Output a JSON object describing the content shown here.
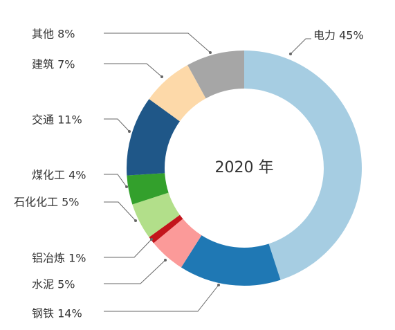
{
  "chart_data": {
    "type": "pie",
    "variant": "donut",
    "center_label": "2020 年",
    "slices": [
      {
        "name": "电力",
        "value": 45,
        "label": "电力 45%",
        "color": "#a6cde2"
      },
      {
        "name": "钢铁",
        "value": 14,
        "label": "钢铁 14%",
        "color": "#1f78b4"
      },
      {
        "name": "水泥",
        "value": 5,
        "label": "水泥 5%",
        "color": "#fb9a99"
      },
      {
        "name": "铝冶炼",
        "value": 1,
        "label": "铝冶炼 1%",
        "color": "#c3151c"
      },
      {
        "name": "石化化工",
        "value": 5,
        "label": "石化化工 5%",
        "color": "#b2df8a"
      },
      {
        "name": "煤化工",
        "value": 4,
        "label": "煤化工 4%",
        "color": "#33a02c"
      },
      {
        "name": "交通",
        "value": 11,
        "label": "交通 11%",
        "color": "#1f5788"
      },
      {
        "name": "建筑",
        "value": 7,
        "label": "建筑 7%",
        "color": "#fdd9a9"
      },
      {
        "name": "其他",
        "value": 8,
        "label": "其他 8%",
        "color": "#a6a6a6"
      }
    ]
  }
}
